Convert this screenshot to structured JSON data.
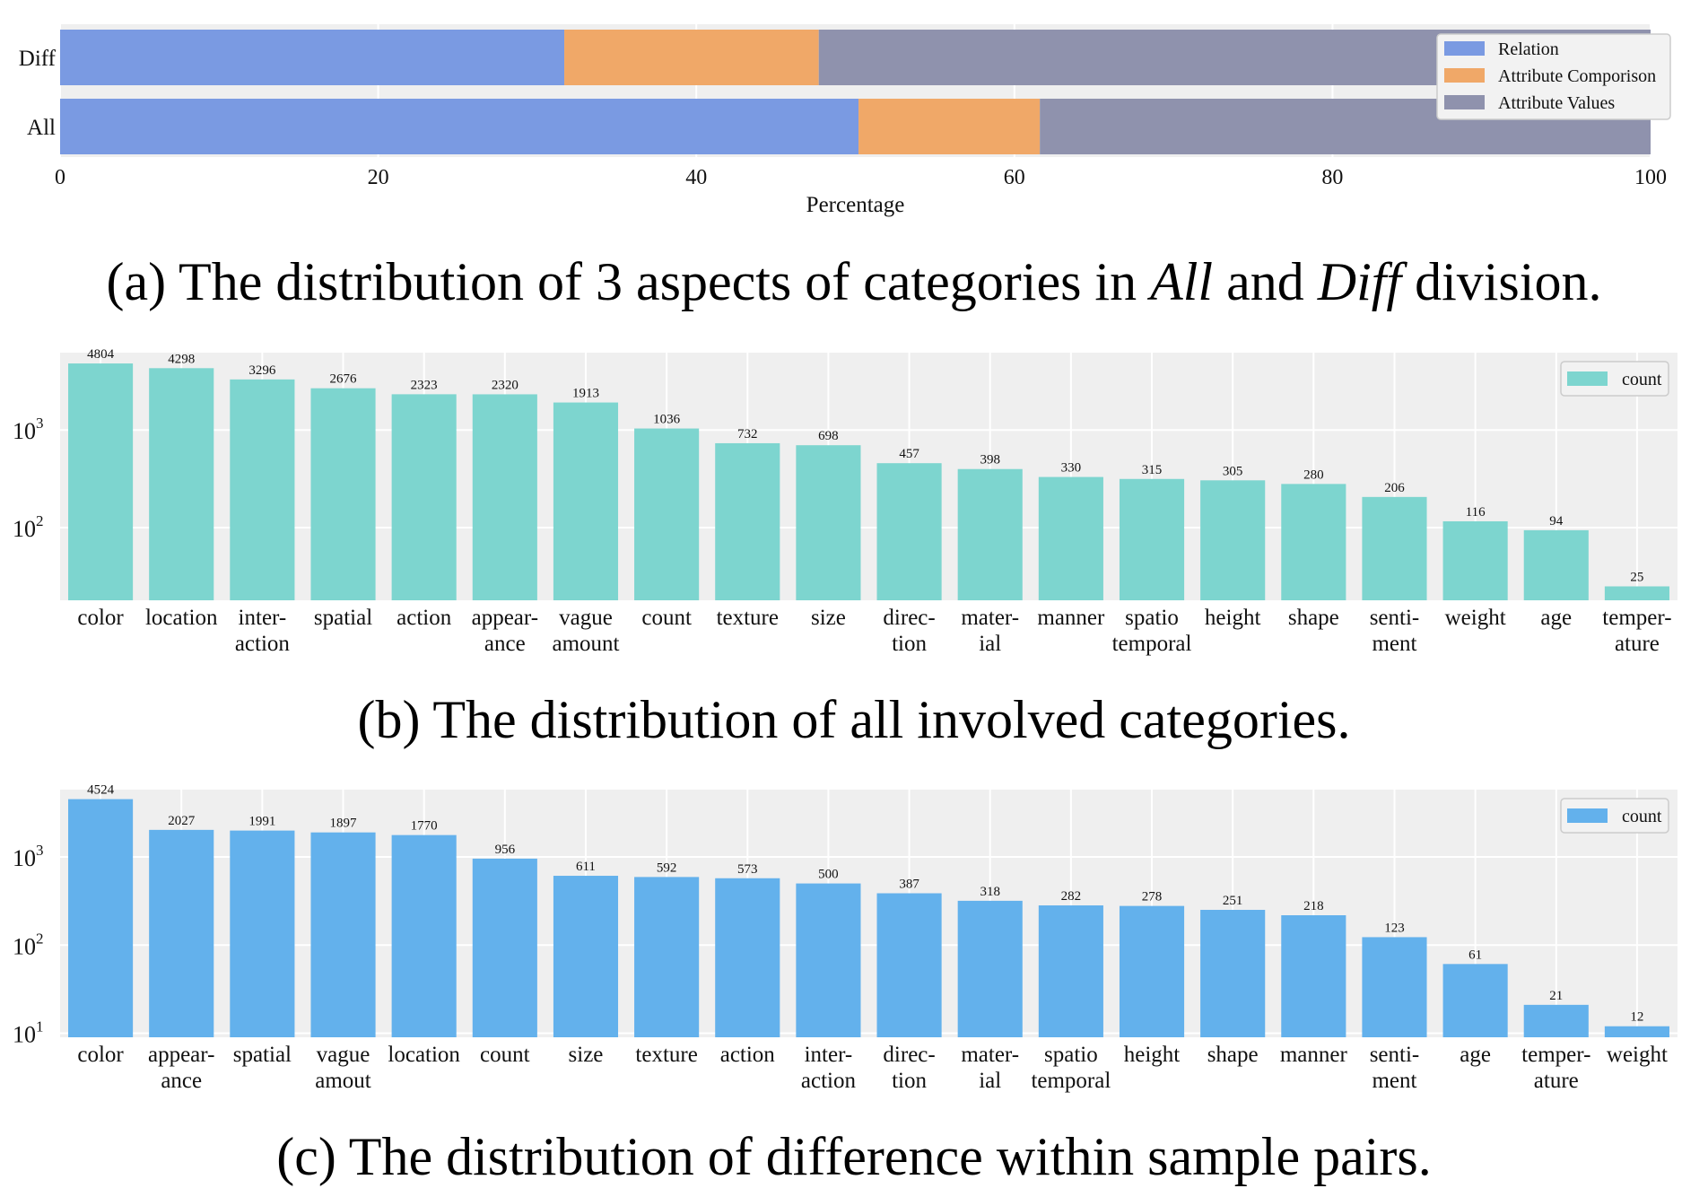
{
  "chart_data": [
    {
      "type": "bar",
      "orientation": "horizontal",
      "stacked": true,
      "categories": [
        "Diff",
        "All"
      ],
      "xlabel": "Percentage",
      "xlim": [
        0,
        100
      ],
      "xticks": [
        0,
        20,
        40,
        60,
        80,
        100
      ],
      "legend_position": "top-right",
      "grid": true,
      "series": [
        {
          "name": "Relation",
          "color": "#7a9ae2",
          "values": [
            31.7,
            50.2
          ]
        },
        {
          "name": "Attribute Comporison",
          "color": "#f0a868",
          "values": [
            16.0,
            11.4
          ]
        },
        {
          "name": "Attribute Values",
          "color": "#8f92ad",
          "values": [
            52.3,
            38.4
          ]
        }
      ],
      "caption": {
        "prefix": "(a) The distribution of 3 aspects of categories in ",
        "em1": "All",
        "mid": " and ",
        "em2": "Diff",
        "suffix": " division."
      }
    },
    {
      "type": "bar",
      "yscale": "log",
      "ylim": [
        18,
        6200
      ],
      "yticks": [
        {
          "base": "10",
          "exp": "2",
          "value": 100
        },
        {
          "base": "10",
          "exp": "3",
          "value": 1000
        }
      ],
      "legend_position": "top-right",
      "grid": true,
      "color": "#7dd5cf",
      "series": [
        {
          "name": "count",
          "values": [
            4804,
            4298,
            3296,
            2676,
            2323,
            2320,
            1913,
            1036,
            732,
            698,
            457,
            398,
            330,
            315,
            305,
            280,
            206,
            116,
            94,
            25
          ]
        }
      ],
      "categories": [
        [
          "color"
        ],
        [
          "location"
        ],
        [
          "inter-",
          "action"
        ],
        [
          "spatial"
        ],
        [
          "action"
        ],
        [
          "appear-",
          "ance"
        ],
        [
          "vague",
          "amount"
        ],
        [
          "count"
        ],
        [
          "texture"
        ],
        [
          "size"
        ],
        [
          "direc-",
          "tion"
        ],
        [
          "mater-",
          "ial"
        ],
        [
          "manner"
        ],
        [
          "spatio",
          "temporal"
        ],
        [
          "height"
        ],
        [
          "shape"
        ],
        [
          "senti-",
          "ment"
        ],
        [
          "weight"
        ],
        [
          "age"
        ],
        [
          "temper-",
          "ature"
        ]
      ],
      "caption": "(b) The distribution of all involved categories."
    },
    {
      "type": "bar",
      "yscale": "log",
      "ylim": [
        9,
        5800
      ],
      "yticks": [
        {
          "base": "10",
          "exp": "1",
          "value": 10
        },
        {
          "base": "10",
          "exp": "2",
          "value": 100
        },
        {
          "base": "10",
          "exp": "3",
          "value": 1000
        }
      ],
      "legend_position": "top-right",
      "grid": true,
      "color": "#63b1ec",
      "series": [
        {
          "name": "count",
          "values": [
            4524,
            2027,
            1991,
            1897,
            1770,
            956,
            611,
            592,
            573,
            500,
            387,
            318,
            282,
            278,
            251,
            218,
            123,
            61,
            21,
            12
          ]
        }
      ],
      "categories": [
        [
          "color"
        ],
        [
          "appear-",
          "ance"
        ],
        [
          "spatial"
        ],
        [
          "vague",
          "amout"
        ],
        [
          "location"
        ],
        [
          "count"
        ],
        [
          "size"
        ],
        [
          "texture"
        ],
        [
          "action"
        ],
        [
          "inter-",
          "action"
        ],
        [
          "direc-",
          "tion"
        ],
        [
          "mater-",
          "ial"
        ],
        [
          "spatio",
          "temporal"
        ],
        [
          "height"
        ],
        [
          "shape"
        ],
        [
          "manner"
        ],
        [
          "senti-",
          "ment"
        ],
        [
          "age"
        ],
        [
          "temper-",
          "ature"
        ],
        [
          "weight"
        ]
      ],
      "caption": "(c) The distribution of difference within sample pairs."
    }
  ]
}
